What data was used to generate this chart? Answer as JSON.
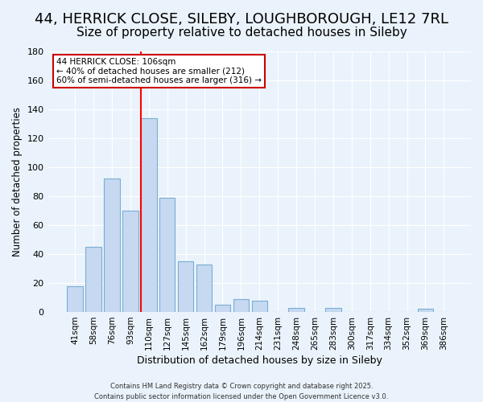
{
  "title": "44, HERRICK CLOSE, SILEBY, LOUGHBOROUGH, LE12 7RL",
  "subtitle": "Size of property relative to detached houses in Sileby",
  "xlabel": "Distribution of detached houses by size in Sileby",
  "ylabel": "Number of detached properties",
  "bar_labels": [
    "41sqm",
    "58sqm",
    "76sqm",
    "93sqm",
    "110sqm",
    "127sqm",
    "145sqm",
    "162sqm",
    "179sqm",
    "196sqm",
    "214sqm",
    "231sqm",
    "248sqm",
    "265sqm",
    "283sqm",
    "300sqm",
    "317sqm",
    "334sqm",
    "352sqm",
    "369sqm",
    "386sqm"
  ],
  "bar_values": [
    18,
    45,
    92,
    70,
    134,
    79,
    35,
    33,
    5,
    9,
    8,
    0,
    3,
    0,
    3,
    0,
    0,
    0,
    0,
    2,
    0
  ],
  "bar_color": "#c6d9f0",
  "bar_edge_color": "#7aadd4",
  "ylim": [
    0,
    180
  ],
  "yticks": [
    0,
    20,
    40,
    60,
    80,
    100,
    120,
    140,
    160,
    180
  ],
  "red_line_x": 3.575,
  "annotation_text": "44 HERRICK CLOSE: 106sqm\n← 40% of detached houses are smaller (212)\n60% of semi-detached houses are larger (316) →",
  "annotation_box_color": "#ffffff",
  "annotation_box_edge": "#cc0000",
  "footer_line1": "Contains HM Land Registry data © Crown copyright and database right 2025.",
  "footer_line2": "Contains public sector information licensed under the Open Government Licence v3.0.",
  "background_color": "#eaf3fb",
  "title_fontsize": 13,
  "subtitle_fontsize": 11
}
